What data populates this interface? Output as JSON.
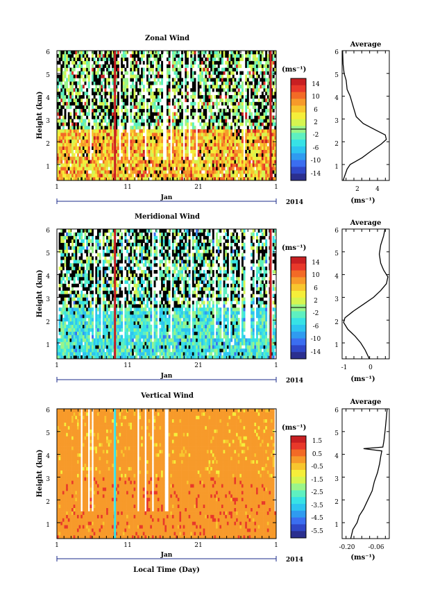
{
  "figure": {
    "xlabel": "Local Time (Day)"
  },
  "colormap": [
    "#2b2f8f",
    "#2f47c7",
    "#3b6ef0",
    "#2f9bf0",
    "#2dc4f0",
    "#37e2e6",
    "#5ef0c0",
    "#9af58a",
    "#d6f550",
    "#f5ee3a",
    "#f8c62e",
    "#f79a2a",
    "#f36a26",
    "#e8382a",
    "#c81f22"
  ],
  "chart_data": [
    {
      "id": "zonal",
      "type": "heatmap",
      "title": "Zonal Wind",
      "ylabel": "Height (km)",
      "xlabel": "Jan",
      "year_label": "2014",
      "x_ticks": [
        "1",
        "11",
        "21",
        "1"
      ],
      "y_ticks": [
        "1",
        "2",
        "3",
        "4",
        "5",
        "6"
      ],
      "ylim": [
        0.3,
        6.0
      ],
      "colorbar": {
        "unit": "(ms⁻¹)",
        "ticks": [
          "14",
          "10",
          "6",
          "2",
          "-2",
          "-6",
          "-10",
          "-14"
        ],
        "range": [
          -16,
          16
        ]
      },
      "average": {
        "title": "Average",
        "xlabel": "(ms⁻¹)",
        "x_ticks": [
          "2",
          "4"
        ],
        "xlim": [
          0.5,
          5.2
        ],
        "profile": [
          {
            "h": 0.3,
            "v": 0.6
          },
          {
            "h": 0.8,
            "v": 1.0
          },
          {
            "h": 1.0,
            "v": 1.3
          },
          {
            "h": 1.3,
            "v": 2.5
          },
          {
            "h": 1.6,
            "v": 3.4
          },
          {
            "h": 1.9,
            "v": 4.4
          },
          {
            "h": 2.1,
            "v": 4.9
          },
          {
            "h": 2.3,
            "v": 4.8
          },
          {
            "h": 2.5,
            "v": 3.9
          },
          {
            "h": 2.8,
            "v": 2.6
          },
          {
            "h": 3.1,
            "v": 1.9
          },
          {
            "h": 3.4,
            "v": 1.7
          },
          {
            "h": 3.7,
            "v": 1.5
          },
          {
            "h": 4.0,
            "v": 1.3
          },
          {
            "h": 4.3,
            "v": 1.0
          },
          {
            "h": 4.7,
            "v": 0.9
          },
          {
            "h": 5.0,
            "v": 0.7
          },
          {
            "h": 5.4,
            "v": 0.6
          },
          {
            "h": 6.0,
            "v": 0.55
          }
        ]
      }
    },
    {
      "id": "meridional",
      "type": "heatmap",
      "title": "Meridional Wind",
      "ylabel": "Height (km)",
      "xlabel": "Jan",
      "year_label": "2014",
      "x_ticks": [
        "1",
        "11",
        "21",
        "1"
      ],
      "y_ticks": [
        "1",
        "2",
        "3",
        "4",
        "5",
        "6"
      ],
      "ylim": [
        0.3,
        6.0
      ],
      "colorbar": {
        "unit": "(ms⁻¹)",
        "ticks": [
          "14",
          "10",
          "6",
          "2",
          "-2",
          "-6",
          "-10",
          "-14"
        ],
        "range": [
          -16,
          16
        ]
      },
      "average": {
        "title": "Average",
        "xlabel": "(ms⁻¹)",
        "x_ticks": [
          "-1",
          "0"
        ],
        "xlim": [
          -1.0,
          0.65
        ],
        "profile": [
          {
            "h": 0.3,
            "v": -0.05
          },
          {
            "h": 0.7,
            "v": -0.2
          },
          {
            "h": 1.0,
            "v": -0.35
          },
          {
            "h": 1.3,
            "v": -0.55
          },
          {
            "h": 1.6,
            "v": -0.8
          },
          {
            "h": 1.9,
            "v": -0.95
          },
          {
            "h": 2.1,
            "v": -0.9
          },
          {
            "h": 2.4,
            "v": -0.6
          },
          {
            "h": 2.7,
            "v": -0.25
          },
          {
            "h": 3.0,
            "v": 0.1
          },
          {
            "h": 3.3,
            "v": 0.35
          },
          {
            "h": 3.6,
            "v": 0.55
          },
          {
            "h": 3.9,
            "v": 0.6
          },
          {
            "h": 4.2,
            "v": 0.45
          },
          {
            "h": 4.5,
            "v": 0.35
          },
          {
            "h": 4.9,
            "v": 0.3
          },
          {
            "h": 5.3,
            "v": 0.35
          },
          {
            "h": 5.7,
            "v": 0.45
          },
          {
            "h": 6.0,
            "v": 0.5
          }
        ]
      }
    },
    {
      "id": "vertical",
      "type": "heatmap",
      "title": "Vertical Wind",
      "ylabel": "Height (km)",
      "xlabel": "Jan",
      "year_label": "2014",
      "x_ticks": [
        "1",
        "11",
        "21",
        "1"
      ],
      "y_ticks": [
        "1",
        "2",
        "3",
        "4",
        "5",
        "6"
      ],
      "ylim": [
        0.3,
        6.0
      ],
      "colorbar": {
        "unit": "(ms⁻¹)",
        "ticks": [
          "1.5",
          "0.5",
          "-0.5",
          "-1.5",
          "-2.5",
          "-3.5",
          "-4.5",
          "-5.5"
        ],
        "range": [
          -6.0,
          2.0
        ]
      },
      "average": {
        "title": "Average",
        "xlabel": "(ms⁻¹)",
        "x_ticks": [
          "-0.20",
          "-0.06"
        ],
        "xlim": [
          -0.24,
          -0.02
        ],
        "profile": [
          {
            "h": 0.3,
            "v": -0.2
          },
          {
            "h": 0.7,
            "v": -0.19
          },
          {
            "h": 1.0,
            "v": -0.17
          },
          {
            "h": 1.3,
            "v": -0.16
          },
          {
            "h": 1.6,
            "v": -0.14
          },
          {
            "h": 2.0,
            "v": -0.12
          },
          {
            "h": 2.4,
            "v": -0.1
          },
          {
            "h": 2.8,
            "v": -0.09
          },
          {
            "h": 3.2,
            "v": -0.075
          },
          {
            "h": 3.6,
            "v": -0.065
          },
          {
            "h": 3.9,
            "v": -0.06
          },
          {
            "h": 4.15,
            "v": -0.055
          },
          {
            "h": 4.25,
            "v": -0.14
          },
          {
            "h": 4.32,
            "v": -0.05
          },
          {
            "h": 4.6,
            "v": -0.045
          },
          {
            "h": 5.0,
            "v": -0.04
          },
          {
            "h": 5.5,
            "v": -0.035
          },
          {
            "h": 6.0,
            "v": -0.03
          }
        ]
      }
    }
  ]
}
